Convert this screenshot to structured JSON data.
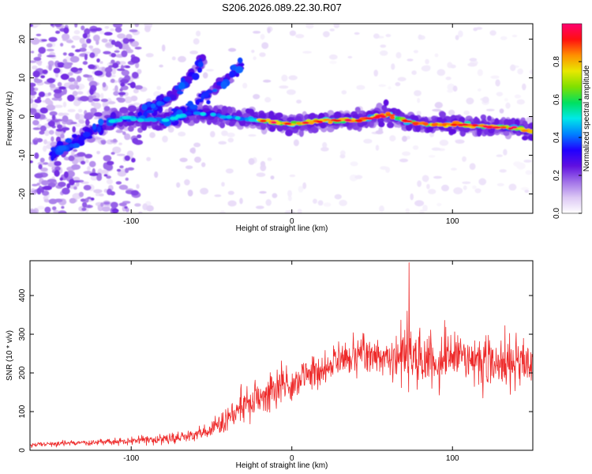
{
  "title": "S206.2026.089.22.30.R07",
  "colors": {
    "line": "#ee2a2a",
    "frame": "#000000",
    "background": "#ffffff"
  },
  "chart_data": [
    {
      "type": "heatmap",
      "xlabel": "Height of straight line (km)",
      "ylabel": "Frequency (Hz)",
      "xlim": [
        -163,
        150
      ],
      "ylim": [
        -25,
        24
      ],
      "xticks": [
        -100,
        0,
        100
      ],
      "yticks": [
        -20,
        -10,
        0,
        10,
        20
      ],
      "colorbar": {
        "label": "Normalized spectral amplitude",
        "range": [
          0,
          1
        ],
        "ticks": [
          0.0,
          0.2,
          0.4,
          0.6,
          0.8
        ],
        "colormap": [
          "#ffffff",
          "#dcc8f4",
          "#a070e8",
          "#6010e0",
          "#2000ff",
          "#0080ff",
          "#00e8e8",
          "#00e060",
          "#80e000",
          "#e8e800",
          "#ff9000",
          "#ff1010",
          "#ff0070"
        ]
      },
      "ridge": {
        "description": "dominant frequency band of high amplitude",
        "points": [
          [
            -112,
            -1
          ],
          [
            -100,
            -0.5
          ],
          [
            -80,
            -1
          ],
          [
            -60,
            1
          ],
          [
            -40,
            0
          ],
          [
            -20,
            -1
          ],
          [
            0,
            -2
          ],
          [
            20,
            -1
          ],
          [
            40,
            -1
          ],
          [
            60,
            0.5
          ],
          [
            70,
            -1
          ],
          [
            80,
            -2
          ],
          [
            100,
            -2
          ],
          [
            120,
            -2.5
          ],
          [
            140,
            -3
          ],
          [
            150,
            -4
          ]
        ]
      },
      "secondary_tracks": [
        {
          "points": [
            [
              -95,
              1
            ],
            [
              -75,
              5
            ],
            [
              -55,
              14
            ]
          ]
        },
        {
          "points": [
            [
              -80,
              -2
            ],
            [
              -60,
              3
            ],
            [
              -45,
              8
            ],
            [
              -30,
              14
            ]
          ]
        },
        {
          "points": [
            [
              -150,
              -10
            ],
            [
              -125,
              -4
            ],
            [
              -110,
              0
            ]
          ]
        }
      ],
      "noise_region_xlim": [
        -163,
        -110
      ]
    },
    {
      "type": "line",
      "xlabel": "Height of straight line (km)",
      "ylabel": "SNR (10 * v/v)",
      "xlim": [
        -163,
        150
      ],
      "ylim": [
        0,
        490
      ],
      "xticks": [
        -100,
        0,
        100
      ],
      "yticks": [
        0,
        100,
        200,
        300,
        400
      ],
      "series": [
        {
          "name": "SNR",
          "color": "#ee2a2a",
          "envelope": {
            "x": [
              -163,
              -140,
              -120,
              -100,
              -80,
              -60,
              -50,
              -40,
              -30,
              -20,
              -10,
              0,
              10,
              20,
              30,
              40,
              50,
              60,
              70,
              75,
              80,
              90,
              100,
              110,
              120,
              130,
              140,
              150
            ],
            "mean": [
              15,
              18,
              20,
              25,
              30,
              40,
              55,
              80,
              110,
              140,
              160,
              170,
              200,
              210,
              230,
              250,
              245,
              240,
              250,
              260,
              240,
              230,
              250,
              230,
              230,
              230,
              220,
              230
            ],
            "amp": [
              10,
              10,
              12,
              15,
              20,
              25,
              35,
              50,
              70,
              80,
              80,
              70,
              70,
              65,
              70,
              70,
              70,
              80,
              120,
              160,
              120,
              120,
              100,
              100,
              110,
              100,
              120,
              90
            ]
          },
          "peak": {
            "x": 73,
            "y": 485
          }
        }
      ]
    }
  ]
}
